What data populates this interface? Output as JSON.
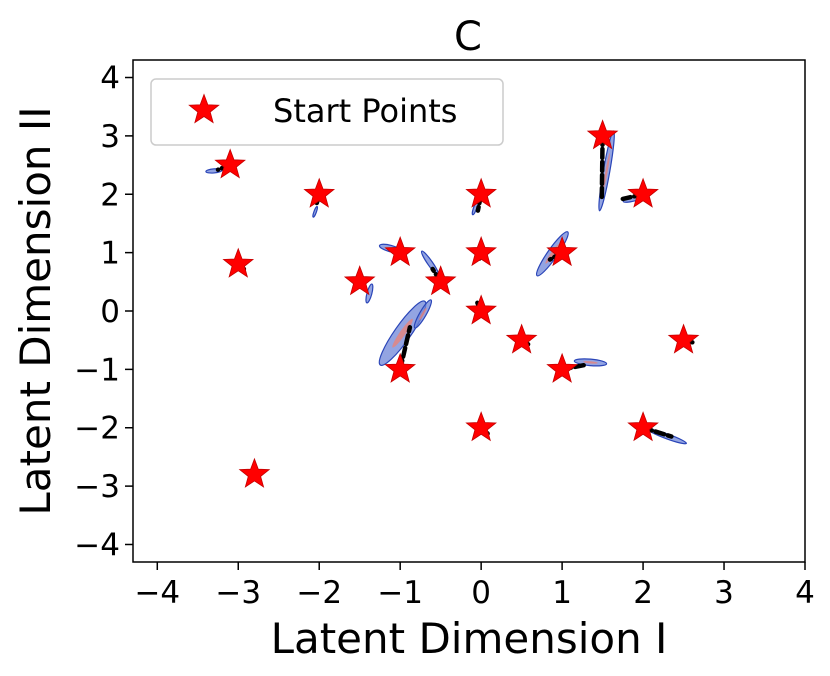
{
  "chart_data": {
    "type": "scatter",
    "title": "C",
    "xlabel": "Latent Dimension I",
    "ylabel": "Latent Dimension II",
    "xlim": [
      -4.3,
      4.0
    ],
    "ylim": [
      -4.3,
      4.3
    ],
    "xticks": [
      -4,
      -3,
      -2,
      -1,
      0,
      1,
      2,
      3,
      4
    ],
    "yticks": [
      -4,
      -3,
      -2,
      -1,
      0,
      1,
      2,
      3,
      4
    ],
    "xtick_labels": [
      "−4",
      "−3",
      "−2",
      "−1",
      "0",
      "1",
      "2",
      "3",
      "4"
    ],
    "ytick_labels": [
      "−4",
      "−3",
      "−2",
      "−1",
      "0",
      "1",
      "2",
      "3",
      "4"
    ],
    "grid": false,
    "legend": {
      "placement": "top-left",
      "entries": [
        "Start Points"
      ]
    },
    "series": [
      {
        "name": "Start Points",
        "marker": "star",
        "color": "#ff0000",
        "points": [
          {
            "x": -3.1,
            "y": 2.5
          },
          {
            "x": -2.0,
            "y": 2.0
          },
          {
            "x": 0.0,
            "y": 2.0
          },
          {
            "x": 1.5,
            "y": 3.0
          },
          {
            "x": 2.0,
            "y": 2.0
          },
          {
            "x": -3.0,
            "y": 0.8
          },
          {
            "x": -1.5,
            "y": 0.5
          },
          {
            "x": -1.0,
            "y": 1.0
          },
          {
            "x": -0.5,
            "y": 0.5
          },
          {
            "x": 0.0,
            "y": 1.0
          },
          {
            "x": 1.0,
            "y": 1.0
          },
          {
            "x": 0.0,
            "y": 0.0
          },
          {
            "x": -1.0,
            "y": -1.0
          },
          {
            "x": 0.5,
            "y": -0.5
          },
          {
            "x": 1.0,
            "y": -1.0
          },
          {
            "x": 2.5,
            "y": -0.5
          },
          {
            "x": 0.0,
            "y": -2.0
          },
          {
            "x": 2.0,
            "y": -2.0
          },
          {
            "x": -2.8,
            "y": -2.8
          }
        ]
      }
    ],
    "trajectories": [
      {
        "points": [
          [
            -3.1,
            2.5
          ],
          [
            -3.25,
            2.42
          ]
        ]
      },
      {
        "points": [
          [
            -2.0,
            2.0
          ],
          [
            -2.03,
            1.85
          ]
        ]
      },
      {
        "points": [
          [
            0.0,
            2.0
          ],
          [
            -0.04,
            1.72
          ]
        ]
      },
      {
        "points": [
          [
            1.5,
            3.0
          ],
          [
            1.49,
            1.95
          ]
        ]
      },
      {
        "points": [
          [
            2.0,
            2.0
          ],
          [
            1.75,
            1.92
          ]
        ]
      },
      {
        "points": [
          [
            -3.0,
            0.8
          ],
          [
            -2.93,
            0.72
          ]
        ]
      },
      {
        "points": [
          [
            -0.5,
            0.5
          ],
          [
            -0.6,
            0.72
          ]
        ]
      },
      {
        "points": [
          [
            0.0,
            1.0
          ],
          [
            -0.02,
            0.9
          ]
        ]
      },
      {
        "points": [
          [
            1.0,
            1.0
          ],
          [
            0.85,
            0.88
          ]
        ]
      },
      {
        "points": [
          [
            0.0,
            0.0
          ],
          [
            -0.05,
            0.15
          ]
        ]
      },
      {
        "points": [
          [
            -1.0,
            -1.0
          ],
          [
            -0.88,
            -0.28
          ]
        ]
      },
      {
        "points": [
          [
            0.5,
            -0.5
          ],
          [
            0.58,
            -0.57
          ]
        ]
      },
      {
        "points": [
          [
            1.0,
            -1.0
          ],
          [
            1.3,
            -0.92
          ]
        ]
      },
      {
        "points": [
          [
            2.5,
            -0.5
          ],
          [
            2.65,
            -0.55
          ]
        ]
      },
      {
        "points": [
          [
            0.0,
            -2.0
          ],
          [
            0.08,
            -2.1
          ]
        ]
      },
      {
        "points": [
          [
            2.0,
            -2.0
          ],
          [
            2.35,
            -2.15
          ]
        ]
      },
      {
        "points": [
          [
            -2.8,
            -2.8
          ],
          [
            -2.75,
            -2.9
          ]
        ]
      }
    ],
    "density_blobs": [
      {
        "cx": -3.3,
        "cy": 2.4,
        "rx": 0.1,
        "ry": 0.025,
        "angle": 5
      },
      {
        "cx": -2.05,
        "cy": 1.7,
        "rx": 0.07,
        "ry": 0.015,
        "angle": 70
      },
      {
        "cx": -0.07,
        "cy": 1.78,
        "rx": 0.1,
        "ry": 0.02,
        "angle": 70
      },
      {
        "cx": 1.55,
        "cy": 2.4,
        "rx": 0.5,
        "ry": 0.04,
        "angle": 80
      },
      {
        "cx": 1.9,
        "cy": 1.93,
        "rx": 0.15,
        "ry": 0.03,
        "angle": 15
      },
      {
        "cx": -1.12,
        "cy": 1.07,
        "rx": 0.14,
        "ry": 0.04,
        "angle": -15
      },
      {
        "cx": -1.38,
        "cy": 0.3,
        "rx": 0.12,
        "ry": 0.03,
        "angle": 75
      },
      {
        "cx": -0.63,
        "cy": 0.82,
        "rx": 0.18,
        "ry": 0.03,
        "angle": -55
      },
      {
        "cx": 0.88,
        "cy": 0.98,
        "rx": 0.33,
        "ry": 0.06,
        "angle": 55
      },
      {
        "cx": -0.97,
        "cy": -0.38,
        "rx": 0.48,
        "ry": 0.1,
        "angle": 55
      },
      {
        "cx": -0.72,
        "cy": -0.05,
        "rx": 0.2,
        "ry": 0.04,
        "angle": 60
      },
      {
        "cx": 1.35,
        "cy": -0.88,
        "rx": 0.2,
        "ry": 0.04,
        "angle": -5
      },
      {
        "cx": 2.3,
        "cy": -2.15,
        "rx": 0.25,
        "ry": 0.03,
        "angle": -20
      }
    ]
  }
}
